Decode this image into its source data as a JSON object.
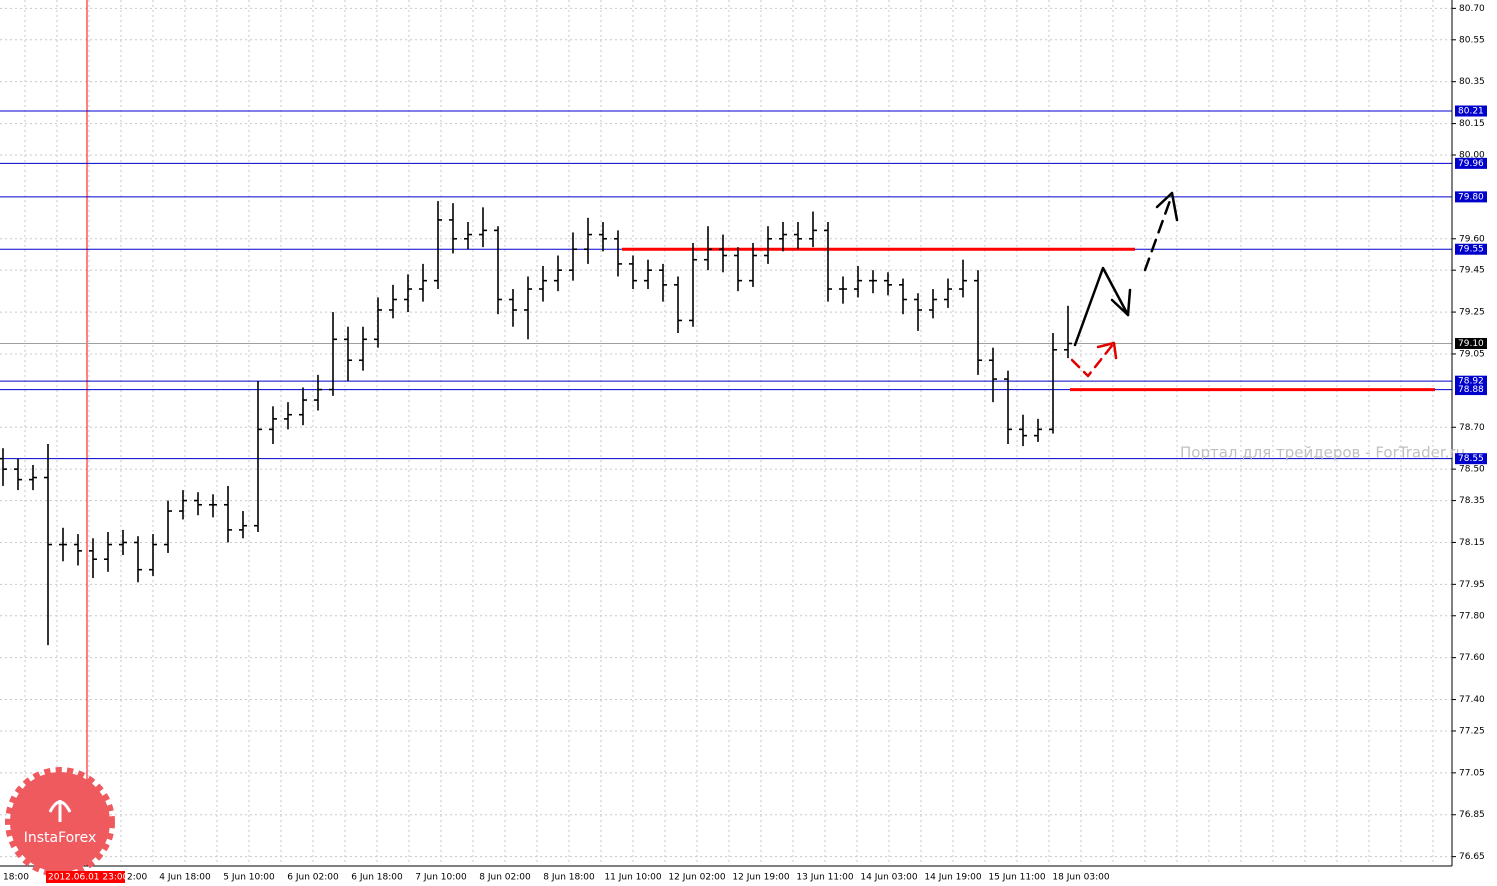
{
  "chart_data": {
    "type": "ohlc",
    "color": "#000000",
    "open": [
      78.55,
      78.5,
      78.45,
      78.46,
      78.14,
      78.14,
      78.11,
      78.07,
      78.14,
      78.15,
      78.02,
      78.14,
      78.3,
      78.35,
      78.33,
      78.33,
      78.21,
      78.23,
      78.69,
      78.74,
      78.76,
      78.83,
      78.88,
      79.12,
      79.02,
      79.12,
      79.26,
      79.31,
      79.36,
      79.4,
      79.69,
      79.6,
      79.62,
      79.64,
      79.31,
      79.26,
      79.36,
      79.4,
      79.45,
      79.55,
      79.62,
      79.6,
      79.48,
      79.4,
      79.45,
      79.38,
      79.21,
      79.5,
      79.55,
      79.52,
      79.4,
      79.52,
      79.6,
      79.62,
      79.6,
      79.64,
      79.36,
      79.36,
      79.4,
      79.4,
      79.38,
      79.31,
      79.26,
      79.31,
      79.36,
      79.4,
      79.02,
      78.93,
      78.69,
      78.66,
      78.69,
      79.07
    ],
    "high": [
      78.6,
      78.55,
      78.52,
      78.62,
      78.22,
      78.19,
      78.17,
      78.2,
      78.21,
      78.18,
      78.19,
      78.35,
      78.4,
      78.39,
      78.38,
      78.42,
      78.3,
      78.92,
      78.8,
      78.82,
      78.89,
      78.95,
      79.25,
      79.18,
      79.18,
      79.32,
      79.38,
      79.43,
      79.48,
      79.78,
      79.77,
      79.68,
      79.75,
      79.66,
      79.36,
      79.42,
      79.47,
      79.52,
      79.63,
      79.7,
      79.68,
      79.64,
      79.52,
      79.5,
      79.48,
      79.42,
      79.58,
      79.66,
      79.62,
      79.56,
      79.58,
      79.66,
      79.68,
      79.68,
      79.73,
      79.68,
      79.42,
      79.47,
      79.45,
      79.44,
      79.41,
      79.34,
      79.36,
      79.41,
      79.5,
      79.45,
      79.08,
      78.97,
      78.76,
      78.74,
      79.15,
      79.28
    ],
    "low": [
      78.42,
      78.4,
      78.4,
      77.66,
      78.06,
      78.04,
      77.98,
      78.01,
      78.09,
      77.96,
      77.99,
      78.1,
      78.26,
      78.28,
      78.27,
      78.15,
      78.17,
      78.2,
      78.62,
      78.69,
      78.71,
      78.78,
      78.85,
      78.92,
      78.97,
      79.08,
      79.22,
      79.25,
      79.3,
      79.36,
      79.53,
      79.55,
      79.56,
      79.24,
      79.18,
      79.12,
      79.3,
      79.35,
      79.4,
      79.48,
      79.54,
      79.42,
      79.36,
      79.36,
      79.3,
      79.15,
      79.18,
      79.45,
      79.44,
      79.35,
      79.37,
      79.48,
      79.54,
      79.55,
      79.56,
      79.3,
      79.29,
      79.32,
      79.34,
      79.33,
      79.24,
      79.16,
      79.22,
      79.27,
      79.32,
      78.95,
      78.82,
      78.62,
      78.61,
      78.63,
      78.67,
      79.03
    ],
    "close": [
      78.5,
      78.45,
      78.46,
      78.14,
      78.14,
      78.11,
      78.07,
      78.14,
      78.15,
      78.02,
      78.14,
      78.3,
      78.35,
      78.33,
      78.33,
      78.21,
      78.23,
      78.69,
      78.74,
      78.76,
      78.83,
      78.88,
      79.12,
      79.02,
      79.12,
      79.26,
      79.31,
      79.36,
      79.4,
      79.69,
      79.6,
      79.62,
      79.64,
      79.31,
      79.26,
      79.36,
      79.4,
      79.45,
      79.55,
      79.62,
      79.6,
      79.48,
      79.4,
      79.45,
      79.38,
      79.21,
      79.5,
      79.55,
      79.52,
      79.4,
      79.52,
      79.6,
      79.62,
      79.6,
      79.64,
      79.36,
      79.36,
      79.4,
      79.4,
      79.38,
      79.31,
      79.26,
      79.31,
      79.36,
      79.4,
      79.02,
      78.93,
      78.69,
      78.66,
      78.69,
      79.07,
      79.1
    ],
    "ylim": [
      76.61,
      80.74
    ],
    "yticks": [
      {
        "value": 80.7,
        "label": "80.70"
      },
      80.55,
      80.35,
      80.15,
      {
        "value": 80,
        "label": "80.00"
      },
      {
        "value": 79.6,
        "label": "79.60"
      },
      79.45,
      79.25,
      79.05,
      {
        "value": 78.7,
        "label": "78.70"
      },
      {
        "value": 78.5,
        "label": "78.50"
      },
      78.35,
      78.15,
      77.95,
      {
        "value": 77.8,
        "label": "77.80"
      },
      {
        "value": 77.6,
        "label": "77.60"
      },
      {
        "value": 77.4,
        "label": "77.40"
      },
      77.25,
      77.05,
      76.85,
      76.65
    ],
    "grid": true,
    "levels": {
      "color": "#0000cd",
      "values": [
        80.21,
        79.96,
        {
          "value": 79.8,
          "label": "79.80"
        },
        79.55,
        78.92,
        78.88,
        78.55
      ]
    },
    "current": {
      "value": 79.1,
      "label": "79.10",
      "color": "#a0a0a0"
    },
    "support_resistance": {
      "color": "#ff0000",
      "values": [
        79.55,
        78.88
      ]
    },
    "x_labels": [
      "18:00",
      "2:00",
      "4 Jun 18:00",
      "5 Jun 10:00",
      "6 Jun 02:00",
      "6 Jun 18:00",
      "7 Jun 10:00",
      "8 Jun 02:00",
      "8 Jun 18:00",
      "11 Jun 10:00",
      "12 Jun 02:00",
      "12 Jun 19:00",
      "13 Jun 11:00",
      "14 Jun 03:00",
      "14 Jun 19:00",
      "15 Jun 11:00",
      "18 Jun 03:00"
    ],
    "cursor_label": "2012.06.01 23:00",
    "watermark": "Портал для трейдеров - ForTrader.ru",
    "logo_text": "InstaForex"
  }
}
